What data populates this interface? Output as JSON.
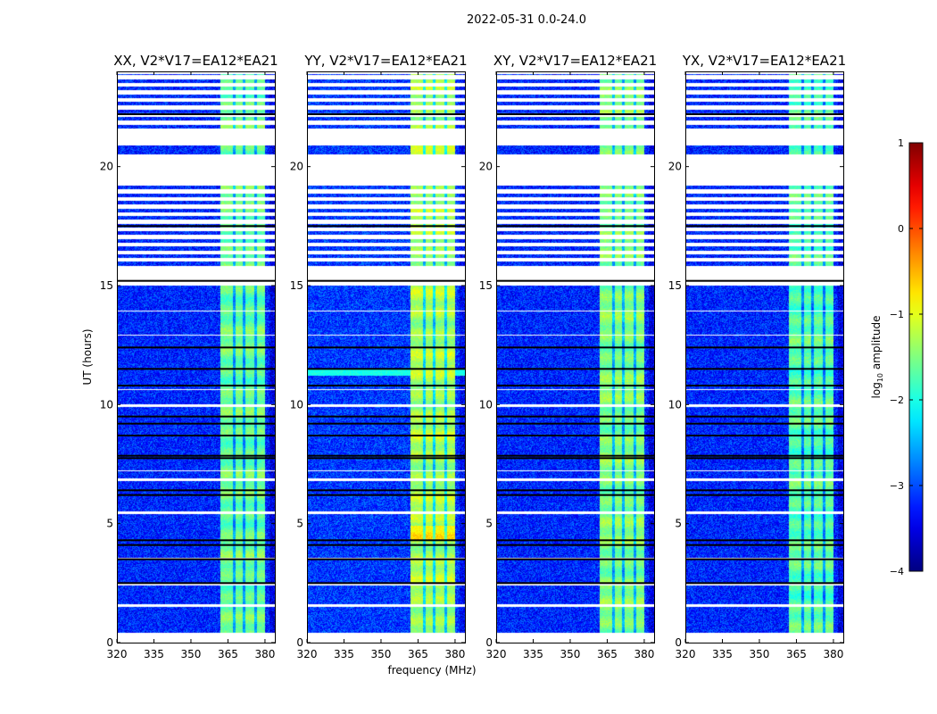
{
  "chart_data": {
    "type": "heatmap",
    "title": "2022-05-31 0.0-24.0",
    "xlabel": "frequency (MHz)",
    "ylabel": "UT (hours)",
    "xlim": [
      320,
      384
    ],
    "ylim": [
      0,
      24
    ],
    "xticks": [
      320,
      335,
      350,
      365,
      380
    ],
    "yticks": [
      0,
      5,
      10,
      15,
      20
    ],
    "panels": [
      {
        "title": "XX, V2*V17=EA12*EA21",
        "rfi_level": -1.6,
        "background_level": -3.2
      },
      {
        "title": "YY, V2*V17=EA12*EA21",
        "rfi_level": -1.3,
        "background_level": -3.1
      },
      {
        "title": "XY, V2*V17=EA12*EA21",
        "rfi_level": -1.5,
        "background_level": -3.2
      },
      {
        "title": "YX, V2*V17=EA12*EA21",
        "rfi_level": -1.7,
        "background_level": -3.2
      }
    ],
    "rfi_band_mhz": [
      362,
      380
    ],
    "data_coverage_hours": [
      0.4,
      23.9
    ],
    "gaps_hours": [
      [
        0,
        0.4
      ],
      [
        1.5,
        1.6
      ],
      [
        2.4,
        2.5
      ],
      [
        3.5,
        3.55
      ],
      [
        5.4,
        5.5
      ],
      [
        6.8,
        6.9
      ],
      [
        7.2,
        7.25
      ],
      [
        9.9,
        10.0
      ],
      [
        10.6,
        10.65
      ],
      [
        12.9,
        12.95
      ],
      [
        13.9,
        13.95
      ],
      [
        15.0,
        15.7
      ],
      [
        19.3,
        20.5
      ],
      [
        20.9,
        21.5
      ],
      [
        23.9,
        24
      ]
    ],
    "striped_hours": [
      [
        15.7,
        19.3
      ],
      [
        21.5,
        23.9
      ]
    ],
    "flagged_hours": [
      2.5,
      3.5,
      4.1,
      4.3,
      6.2,
      6.4,
      7.75,
      7.85,
      8.7,
      9.2,
      9.5,
      10.8,
      11.5,
      12.4,
      15.2,
      17.5,
      22.2
    ],
    "colorbar": {
      "label": "log10 amplitude",
      "range": [
        -4,
        1
      ],
      "ticks": [
        -4,
        -3,
        -2,
        -1,
        0,
        1
      ],
      "colormap": "jet"
    }
  }
}
